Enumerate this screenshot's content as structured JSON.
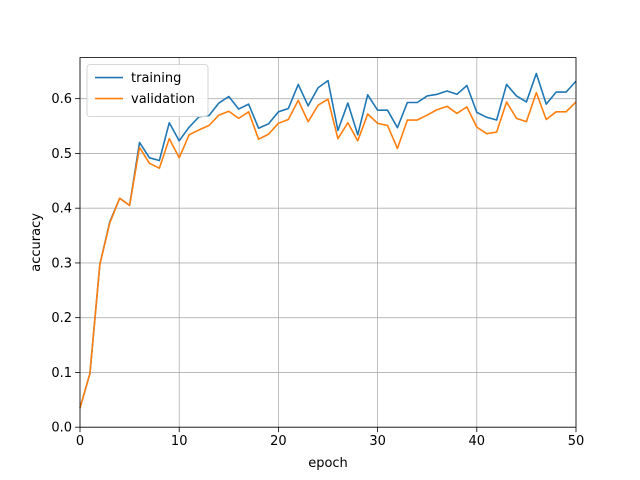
{
  "chart_data": {
    "type": "line",
    "xlabel": "epoch",
    "ylabel": "accuracy",
    "xlim": [
      0,
      50
    ],
    "ylim": [
      0,
      0.675
    ],
    "xticks": [
      0,
      10,
      20,
      30,
      40,
      50
    ],
    "xtick_labels": [
      "0",
      "10",
      "20",
      "30",
      "40",
      "50"
    ],
    "yticks": [
      0.0,
      0.1,
      0.2,
      0.3,
      0.4,
      0.5,
      0.6
    ],
    "ytick_labels": [
      "0.0",
      "0.1",
      "0.2",
      "0.3",
      "0.4",
      "0.5",
      "0.6"
    ],
    "grid": true,
    "legend_position": "top-left",
    "x": [
      0,
      1,
      2,
      3,
      4,
      5,
      6,
      7,
      8,
      9,
      10,
      11,
      12,
      13,
      14,
      15,
      16,
      17,
      18,
      19,
      20,
      21,
      22,
      23,
      24,
      25,
      26,
      27,
      28,
      29,
      30,
      31,
      32,
      33,
      34,
      35,
      36,
      37,
      38,
      39,
      40,
      41,
      42,
      43,
      44,
      45,
      46,
      47,
      48,
      49,
      50
    ],
    "series": [
      {
        "name": "training",
        "color": "#1f77b4",
        "values": [
          0.035,
          0.098,
          0.297,
          0.375,
          0.418,
          0.405,
          0.52,
          0.492,
          0.487,
          0.556,
          0.523,
          0.548,
          0.567,
          0.569,
          0.592,
          0.604,
          0.581,
          0.59,
          0.546,
          0.554,
          0.576,
          0.582,
          0.626,
          0.587,
          0.62,
          0.633,
          0.542,
          0.592,
          0.534,
          0.607,
          0.579,
          0.579,
          0.547,
          0.593,
          0.593,
          0.605,
          0.608,
          0.614,
          0.608,
          0.624,
          0.575,
          0.566,
          0.561,
          0.626,
          0.605,
          0.594,
          0.646,
          0.59,
          0.612,
          0.612,
          0.632
        ]
      },
      {
        "name": "validation",
        "color": "#ff7f0e",
        "values": [
          0.035,
          0.098,
          0.297,
          0.373,
          0.418,
          0.405,
          0.511,
          0.482,
          0.473,
          0.527,
          0.492,
          0.534,
          0.543,
          0.551,
          0.57,
          0.577,
          0.564,
          0.576,
          0.526,
          0.535,
          0.555,
          0.562,
          0.597,
          0.558,
          0.588,
          0.599,
          0.527,
          0.556,
          0.523,
          0.572,
          0.555,
          0.551,
          0.509,
          0.561,
          0.561,
          0.57,
          0.58,
          0.586,
          0.573,
          0.585,
          0.548,
          0.536,
          0.539,
          0.594,
          0.564,
          0.558,
          0.611,
          0.562,
          0.576,
          0.576,
          0.594
        ]
      }
    ]
  }
}
